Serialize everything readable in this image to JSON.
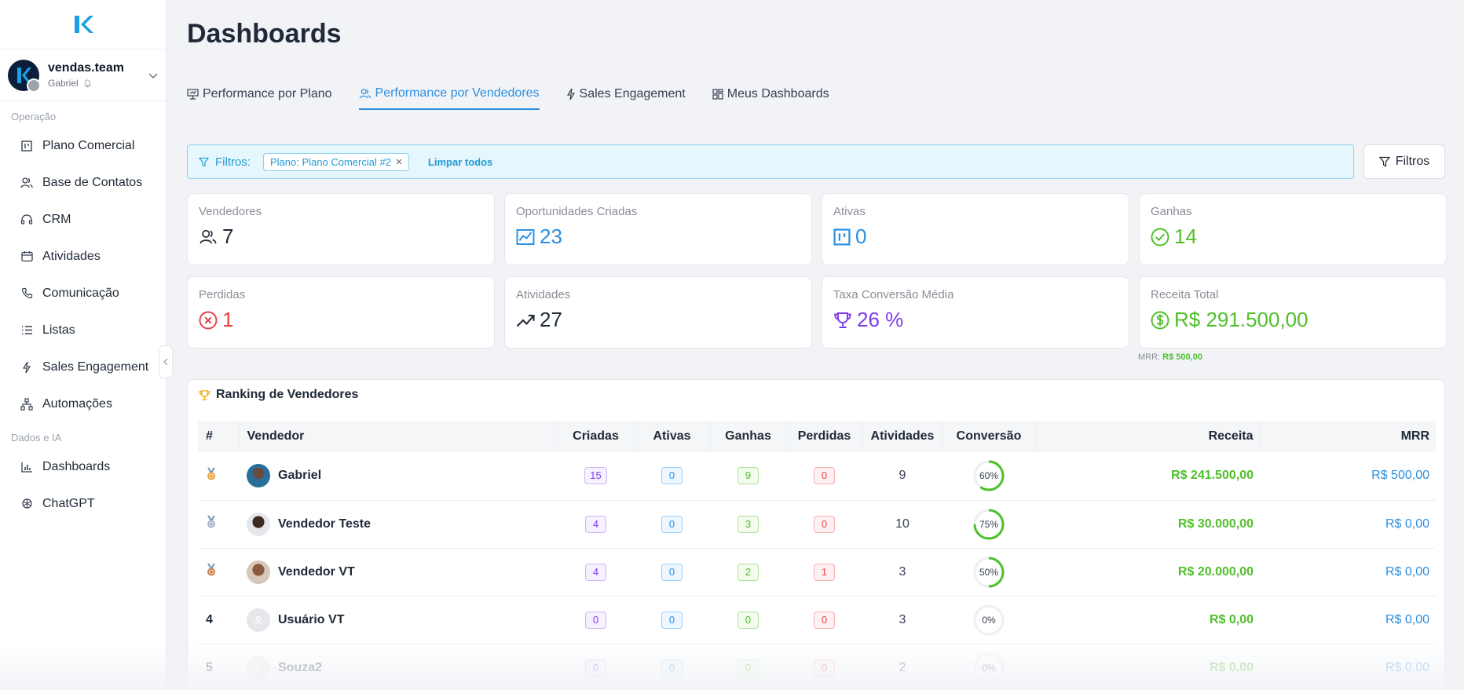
{
  "sidebar": {
    "team_name": "vendas.team",
    "user_name": "Gabriel",
    "section_operacao": "Operação",
    "section_dados": "Dados e IA",
    "items": [
      {
        "label": "Plano Comercial"
      },
      {
        "label": "Base de Contatos"
      },
      {
        "label": "CRM"
      },
      {
        "label": "Atividades"
      },
      {
        "label": "Comunicação"
      },
      {
        "label": "Listas"
      },
      {
        "label": "Sales Engagement"
      },
      {
        "label": "Automações"
      },
      {
        "label": "Dashboards"
      },
      {
        "label": "ChatGPT"
      }
    ]
  },
  "header": {
    "title": "Dashboards",
    "tabs": [
      {
        "label": "Performance por Plano"
      },
      {
        "label": "Performance por Vendedores"
      },
      {
        "label": "Sales Engagement"
      },
      {
        "label": "Meus Dashboards"
      }
    ]
  },
  "filters": {
    "label": "Filtros:",
    "chip": "Plano: Plano Comercial #2",
    "clear_all": "Limpar todos",
    "button": "Filtros"
  },
  "stats": [
    {
      "label": "Vendedores",
      "value": "7"
    },
    {
      "label": "Oportunidades Criadas",
      "value": "23"
    },
    {
      "label": "Ativas",
      "value": "0"
    },
    {
      "label": "Ganhas",
      "value": "14"
    },
    {
      "label": "Perdidas",
      "value": "1"
    },
    {
      "label": "Atividades",
      "value": "27"
    },
    {
      "label": "Taxa Conversão Média",
      "value": "26 %"
    },
    {
      "label": "Receita Total",
      "value": "R$ 291.500,00"
    }
  ],
  "mrr_summary": {
    "label": "MRR:",
    "value": "R$ 500,00"
  },
  "ranking": {
    "title": "Ranking de Vendedores",
    "columns": [
      "#",
      "Vendedor",
      "Criadas",
      "Ativas",
      "Ganhas",
      "Perdidas",
      "Atividades",
      "Conversão",
      "Receita",
      "MRR"
    ],
    "rows": [
      {
        "rank": "",
        "medal": "gold",
        "name": "Gabriel",
        "criadas": "15",
        "ativas": "0",
        "ganhas": "9",
        "perdidas": "0",
        "atividades": "9",
        "conversao": "60%",
        "conv_pct": 60,
        "receita": "R$ 241.500,00",
        "mrr": "R$ 500,00"
      },
      {
        "rank": "",
        "medal": "silver",
        "name": "Vendedor Teste",
        "criadas": "4",
        "ativas": "0",
        "ganhas": "3",
        "perdidas": "0",
        "atividades": "10",
        "conversao": "75%",
        "conv_pct": 75,
        "receita": "R$ 30.000,00",
        "mrr": "R$ 0,00"
      },
      {
        "rank": "",
        "medal": "bronze",
        "name": "Vendedor VT",
        "criadas": "4",
        "ativas": "0",
        "ganhas": "2",
        "perdidas": "1",
        "atividades": "3",
        "conversao": "50%",
        "conv_pct": 50,
        "receita": "R$ 20.000,00",
        "mrr": "R$ 0,00"
      },
      {
        "rank": "4",
        "medal": "",
        "name": "Usuário VT",
        "criadas": "0",
        "ativas": "0",
        "ganhas": "0",
        "perdidas": "0",
        "atividades": "3",
        "conversao": "0%",
        "conv_pct": 0,
        "receita": "R$ 0,00",
        "mrr": "R$ 0,00"
      },
      {
        "rank": "5",
        "medal": "",
        "name": "Souza2",
        "criadas": "0",
        "ativas": "0",
        "ganhas": "0",
        "perdidas": "0",
        "atividades": "2",
        "conversao": "0%",
        "conv_pct": 0,
        "receita": "R$ 0,00",
        "mrr": "R$ 0,00"
      }
    ]
  },
  "colors": {
    "accent": "#2b8fe0",
    "green": "#4fbf2a",
    "red": "#e24343",
    "purple": "#7c3aed"
  }
}
